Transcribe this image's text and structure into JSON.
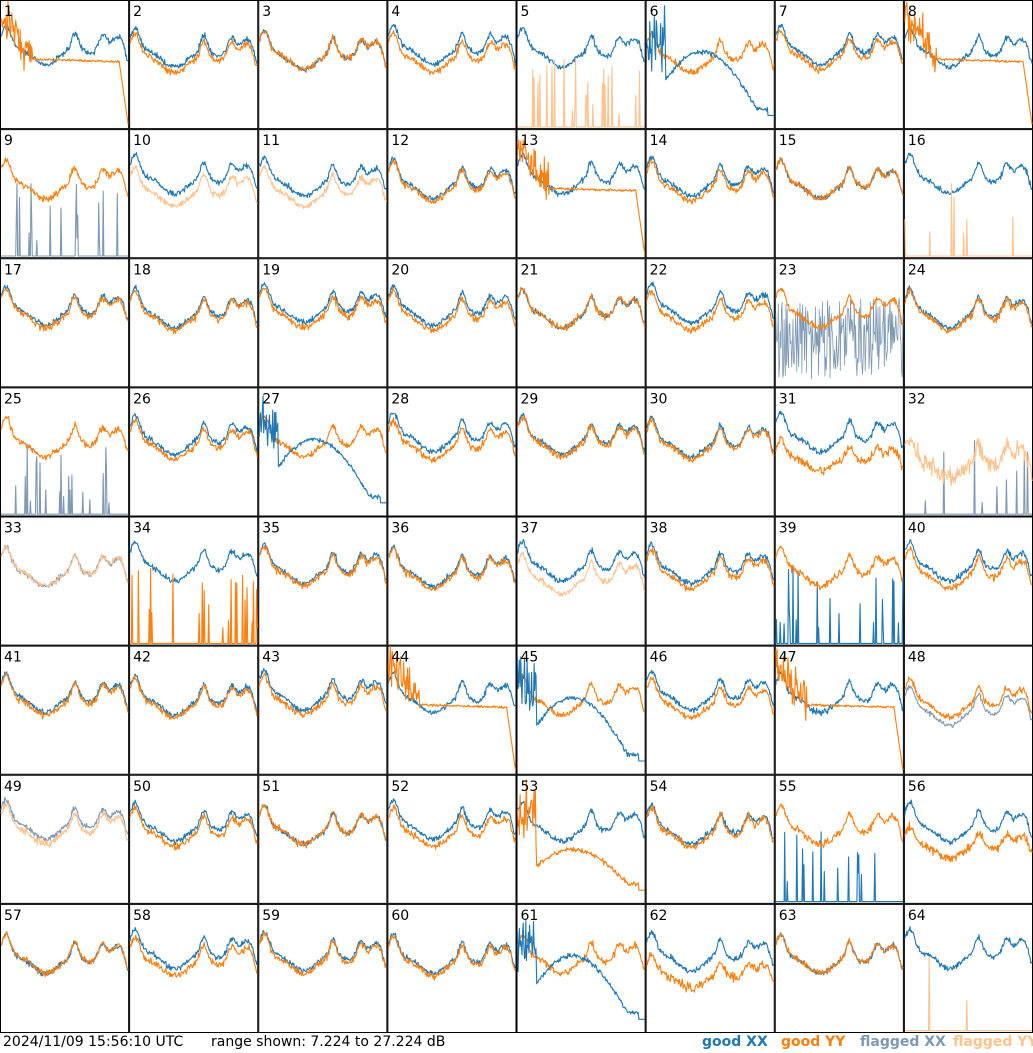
{
  "chart_data": {
    "type": "line",
    "title": "",
    "xlabel": "",
    "ylabel": "",
    "grid": "8x8",
    "panel_count": 64,
    "panels": [
      "1",
      "2",
      "3",
      "4",
      "5",
      "6",
      "7",
      "8",
      "9",
      "10",
      "11",
      "12",
      "13",
      "14",
      "15",
      "16",
      "17",
      "18",
      "19",
      "20",
      "21",
      "22",
      "23",
      "24",
      "25",
      "26",
      "27",
      "28",
      "29",
      "30",
      "31",
      "32",
      "33",
      "34",
      "35",
      "36",
      "37",
      "38",
      "39",
      "40",
      "41",
      "42",
      "43",
      "44",
      "45",
      "46",
      "47",
      "48",
      "49",
      "50",
      "51",
      "52",
      "53",
      "54",
      "55",
      "56",
      "57",
      "58",
      "59",
      "60",
      "61",
      "62",
      "63",
      "64"
    ],
    "ylim": [
      7.224,
      27.224
    ],
    "series": [
      {
        "name": "good XX",
        "color": "#1f77b4"
      },
      {
        "name": "good YY",
        "color": "#ff7f0e"
      },
      {
        "name": "flagged XX",
        "color": "#7f99b4"
      },
      {
        "name": "flagged YY",
        "color": "#ffc390"
      }
    ],
    "panel_styles": {
      "1": "drop",
      "5": "xx_spikes_yy",
      "6": "dipx",
      "8": "drop",
      "9": "yy_spikes_fxx",
      "10": "flag_yy",
      "11": "flag_yy",
      "13": "drop",
      "16": "xx_spikes_fyy",
      "23": "yy_noise_fxx",
      "25": "yy_spikes_fxx",
      "27": "dipx",
      "31": "low_yy",
      "32": "flag_noise",
      "33": "flag_both",
      "34": "xx_spikes_yy",
      "37": "flag_yy",
      "39": "yy_spikes_xx",
      "44": "drop",
      "45": "dipx",
      "47": "drop",
      "48": "flag_xx",
      "49": "flag_both",
      "53": "dipy",
      "55": "yy_spikes_xx",
      "56": "low_yy",
      "61": "dipx",
      "62": "low_yy",
      "64": "xx_spikes_fyy"
    }
  },
  "footer": {
    "timestamp": "2024/11/09 15:56:10 UTC",
    "range": "range shown: 7.224 to 27.224 dB",
    "legend": {
      "good_xx": "good XX",
      "good_yy": "good YY",
      "flagged_xx": "flagged XX",
      "flagged_yy": "flagged YY"
    }
  },
  "colors": {
    "good_xx": "#1f77b4",
    "good_yy": "#ff7f0e",
    "flagged_xx": "#7f99b4",
    "flagged_yy": "#ffc390"
  }
}
